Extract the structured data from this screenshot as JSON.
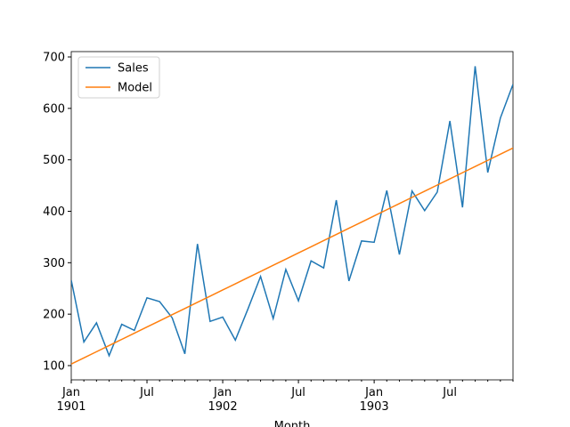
{
  "chart_data": {
    "type": "line",
    "x_label": "Month",
    "categories": [
      "Jan\n1901",
      null,
      null,
      null,
      null,
      null,
      "Jul",
      null,
      null,
      null,
      null,
      null,
      "Jan\n1902",
      null,
      null,
      null,
      null,
      null,
      "Jul",
      null,
      null,
      null,
      null,
      null,
      "Jan\n1903",
      null,
      null,
      null,
      null,
      null,
      "Jul",
      null,
      null,
      null,
      null,
      null
    ],
    "series": [
      {
        "name": "Sales",
        "color": "#1f77b4",
        "values": [
          266.0,
          145.9,
          183.1,
          119.3,
          180.3,
          168.5,
          231.8,
          224.5,
          192.8,
          122.9,
          336.5,
          185.9,
          194.3,
          149.5,
          210.1,
          273.3,
          191.4,
          287.0,
          226.0,
          303.6,
          289.9,
          421.6,
          264.5,
          342.3,
          339.7,
          440.4,
          315.9,
          439.3,
          401.3,
          437.4,
          575.5,
          407.6,
          682.0,
          475.3,
          581.3,
          646.9
        ]
      },
      {
        "name": "Model",
        "color": "#ff7f0e",
        "values": [
          103,
          115,
          127,
          139,
          151,
          163,
          175,
          187,
          199,
          211,
          223,
          235,
          247,
          259,
          271,
          283,
          295,
          307,
          319,
          331,
          343,
          355,
          367,
          379,
          391,
          403,
          415,
          427,
          439,
          451,
          463,
          475,
          487,
          499,
          511,
          523
        ]
      }
    ],
    "ylim": [
      72.3,
      710.4
    ],
    "yticks": [
      100,
      200,
      300,
      400,
      500,
      600,
      700
    ],
    "legend": "upper left"
  }
}
